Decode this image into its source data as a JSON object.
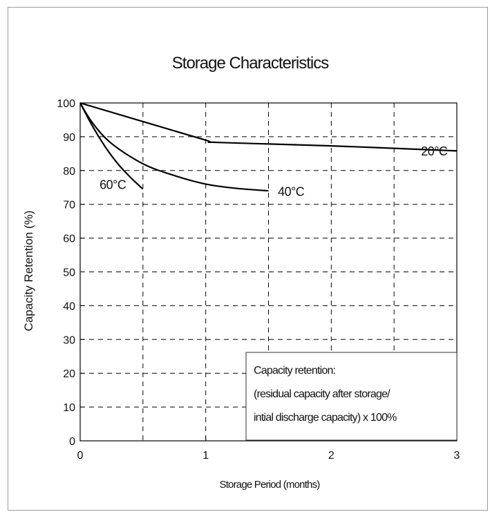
{
  "chart_data": {
    "type": "line",
    "title": "Storage Characteristics",
    "xlabel": "Storage Period (months)",
    "ylabel": "Capacity Retention (%)",
    "xlim": [
      0,
      3
    ],
    "ylim": [
      0,
      100
    ],
    "xticks": [
      "0",
      "1",
      "2",
      "3"
    ],
    "yticks": [
      "0",
      "10",
      "20",
      "30",
      "40",
      "50",
      "60",
      "70",
      "80",
      "90",
      "100"
    ],
    "xtick_values": [
      0,
      1,
      2,
      3
    ],
    "ytick_values": [
      0,
      10,
      20,
      30,
      40,
      50,
      60,
      70,
      80,
      90,
      100
    ],
    "grid": true,
    "series": [
      {
        "name": "20°C",
        "x": [
          0,
          0.5,
          1.0,
          1.1,
          2.0,
          3.0
        ],
        "y": [
          100,
          94.5,
          89,
          88.3,
          87.3,
          85.8
        ]
      },
      {
        "name": "40°C",
        "x": [
          0,
          0.1,
          0.25,
          0.5,
          0.75,
          1.0,
          1.25,
          1.5
        ],
        "y": [
          100,
          94,
          88,
          82,
          78.5,
          76,
          74.7,
          74
        ]
      },
      {
        "name": "60°C",
        "x": [
          0,
          0.1,
          0.2,
          0.3,
          0.4,
          0.5
        ],
        "y": [
          100,
          93,
          87,
          82,
          78,
          74.5
        ]
      }
    ],
    "series_labels": [
      {
        "text": "20°C",
        "x": 2.82,
        "y": 84.5
      },
      {
        "text": "40°C",
        "x": 1.68,
        "y": 72.5
      },
      {
        "text": "60°C",
        "x": 0.26,
        "y": 74.5
      }
    ],
    "annotation": {
      "lines": [
        "Capacity retention:",
        "(residual capacity after storage/",
        "intial discharge capacity) x 100%"
      ]
    }
  }
}
